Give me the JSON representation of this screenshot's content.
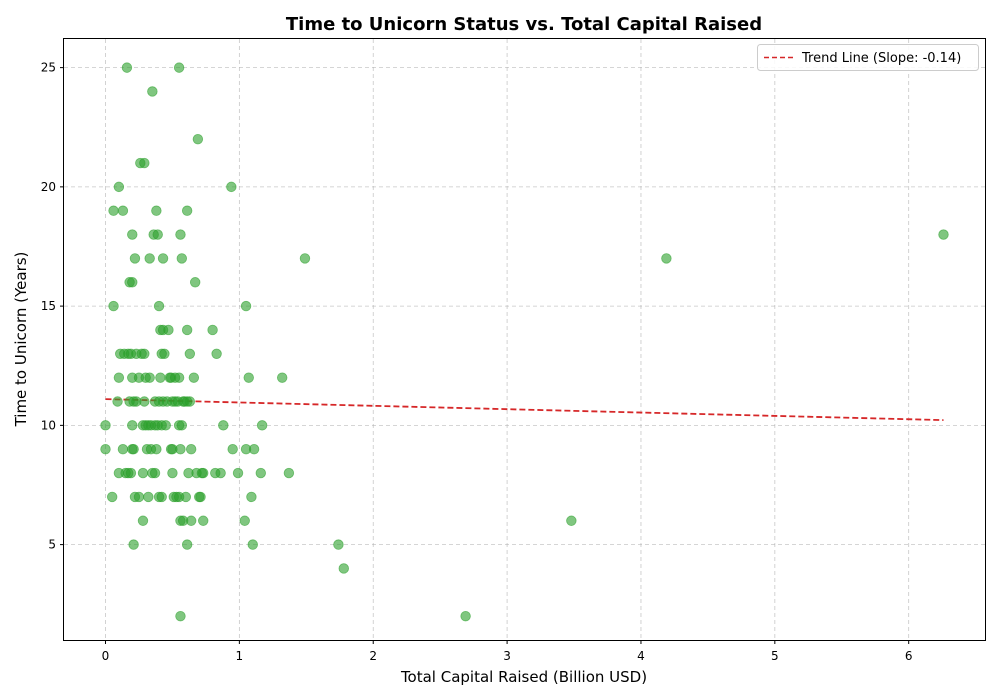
{
  "chart_data": {
    "type": "scatter",
    "title": "Time to Unicorn Status vs. Total Capital Raised",
    "xlabel": "Total Capital Raised (Billion USD)",
    "ylabel": "Time to Unicorn (Years)",
    "xlim": [
      -0.31,
      6.57
    ],
    "ylim": [
      1.0,
      26.2
    ],
    "xticks": [
      0,
      1,
      2,
      3,
      4,
      5,
      6
    ],
    "yticks": [
      5,
      10,
      15,
      20,
      25
    ],
    "grid": true,
    "legend_position": "top-right",
    "point_color": "#2ca02c",
    "trend_color": "#d62728",
    "series": [
      {
        "values": [
          [
            0.0,
            10
          ],
          [
            0.0,
            9
          ],
          [
            0.05,
            7
          ],
          [
            0.06,
            15
          ],
          [
            0.06,
            19
          ],
          [
            0.09,
            11
          ],
          [
            0.1,
            12
          ],
          [
            0.1,
            20
          ],
          [
            0.1,
            8
          ],
          [
            0.11,
            13
          ],
          [
            0.13,
            19
          ],
          [
            0.13,
            9
          ],
          [
            0.14,
            13
          ],
          [
            0.15,
            8
          ],
          [
            0.16,
            25
          ],
          [
            0.17,
            8
          ],
          [
            0.17,
            13
          ],
          [
            0.18,
            16
          ],
          [
            0.18,
            11
          ],
          [
            0.19,
            13
          ],
          [
            0.19,
            8
          ],
          [
            0.2,
            18
          ],
          [
            0.2,
            10
          ],
          [
            0.2,
            9
          ],
          [
            0.2,
            12
          ],
          [
            0.2,
            16
          ],
          [
            0.21,
            5
          ],
          [
            0.21,
            11
          ],
          [
            0.21,
            9
          ],
          [
            0.22,
            7
          ],
          [
            0.22,
            17
          ],
          [
            0.23,
            11
          ],
          [
            0.23,
            13
          ],
          [
            0.25,
            12
          ],
          [
            0.25,
            7
          ],
          [
            0.26,
            21
          ],
          [
            0.27,
            13
          ],
          [
            0.28,
            10
          ],
          [
            0.28,
            6
          ],
          [
            0.28,
            8
          ],
          [
            0.29,
            21
          ],
          [
            0.29,
            11
          ],
          [
            0.29,
            13
          ],
          [
            0.3,
            10
          ],
          [
            0.3,
            12
          ],
          [
            0.31,
            9
          ],
          [
            0.32,
            10
          ],
          [
            0.32,
            7
          ],
          [
            0.33,
            12
          ],
          [
            0.33,
            17
          ],
          [
            0.34,
            9
          ],
          [
            0.34,
            10
          ],
          [
            0.35,
            8
          ],
          [
            0.35,
            24
          ],
          [
            0.36,
            18
          ],
          [
            0.37,
            11
          ],
          [
            0.37,
            10
          ],
          [
            0.37,
            8
          ],
          [
            0.38,
            19
          ],
          [
            0.38,
            9
          ],
          [
            0.39,
            18
          ],
          [
            0.39,
            10
          ],
          [
            0.4,
            7
          ],
          [
            0.4,
            15
          ],
          [
            0.4,
            11
          ],
          [
            0.41,
            12
          ],
          [
            0.41,
            14
          ],
          [
            0.42,
            10
          ],
          [
            0.42,
            13
          ],
          [
            0.42,
            7
          ],
          [
            0.43,
            11
          ],
          [
            0.43,
            17
          ],
          [
            0.43,
            14
          ],
          [
            0.44,
            13
          ],
          [
            0.45,
            10
          ],
          [
            0.46,
            11
          ],
          [
            0.47,
            14
          ],
          [
            0.48,
            12
          ],
          [
            0.49,
            9
          ],
          [
            0.49,
            12
          ],
          [
            0.5,
            9
          ],
          [
            0.5,
            11
          ],
          [
            0.5,
            8
          ],
          [
            0.51,
            7
          ],
          [
            0.52,
            12
          ],
          [
            0.52,
            11
          ],
          [
            0.53,
            7
          ],
          [
            0.54,
            11
          ],
          [
            0.55,
            25
          ],
          [
            0.55,
            10
          ],
          [
            0.55,
            12
          ],
          [
            0.55,
            7
          ],
          [
            0.56,
            18
          ],
          [
            0.56,
            2
          ],
          [
            0.56,
            9
          ],
          [
            0.56,
            6
          ],
          [
            0.57,
            10
          ],
          [
            0.57,
            17
          ],
          [
            0.58,
            11
          ],
          [
            0.58,
            6
          ],
          [
            0.59,
            11
          ],
          [
            0.6,
            7
          ],
          [
            0.61,
            19
          ],
          [
            0.61,
            11
          ],
          [
            0.61,
            5
          ],
          [
            0.61,
            14
          ],
          [
            0.62,
            8
          ],
          [
            0.63,
            13
          ],
          [
            0.63,
            11
          ],
          [
            0.64,
            6
          ],
          [
            0.64,
            9
          ],
          [
            0.66,
            12
          ],
          [
            0.67,
            16
          ],
          [
            0.68,
            8
          ],
          [
            0.69,
            22
          ],
          [
            0.7,
            7
          ],
          [
            0.71,
            7
          ],
          [
            0.72,
            8
          ],
          [
            0.73,
            8
          ],
          [
            0.73,
            6
          ],
          [
            0.8,
            14
          ],
          [
            0.82,
            8
          ],
          [
            0.83,
            13
          ],
          [
            0.86,
            8
          ],
          [
            0.88,
            10
          ],
          [
            0.94,
            20
          ],
          [
            0.95,
            9
          ],
          [
            0.99,
            8
          ],
          [
            1.04,
            6
          ],
          [
            1.05,
            15
          ],
          [
            1.05,
            9
          ],
          [
            1.07,
            12
          ],
          [
            1.09,
            7
          ],
          [
            1.1,
            5
          ],
          [
            1.11,
            9
          ],
          [
            1.16,
            8
          ],
          [
            1.17,
            10
          ],
          [
            1.32,
            12
          ],
          [
            1.37,
            8
          ],
          [
            1.49,
            17
          ],
          [
            1.74,
            5
          ],
          [
            1.78,
            4
          ],
          [
            2.69,
            2
          ],
          [
            3.48,
            6
          ],
          [
            4.19,
            17
          ],
          [
            6.26,
            18
          ]
        ]
      }
    ],
    "trend_line": {
      "label": "Trend Line (Slope: -0.14)",
      "x": [
        0.0,
        6.26
      ],
      "y": [
        11.1,
        10.22
      ]
    }
  }
}
